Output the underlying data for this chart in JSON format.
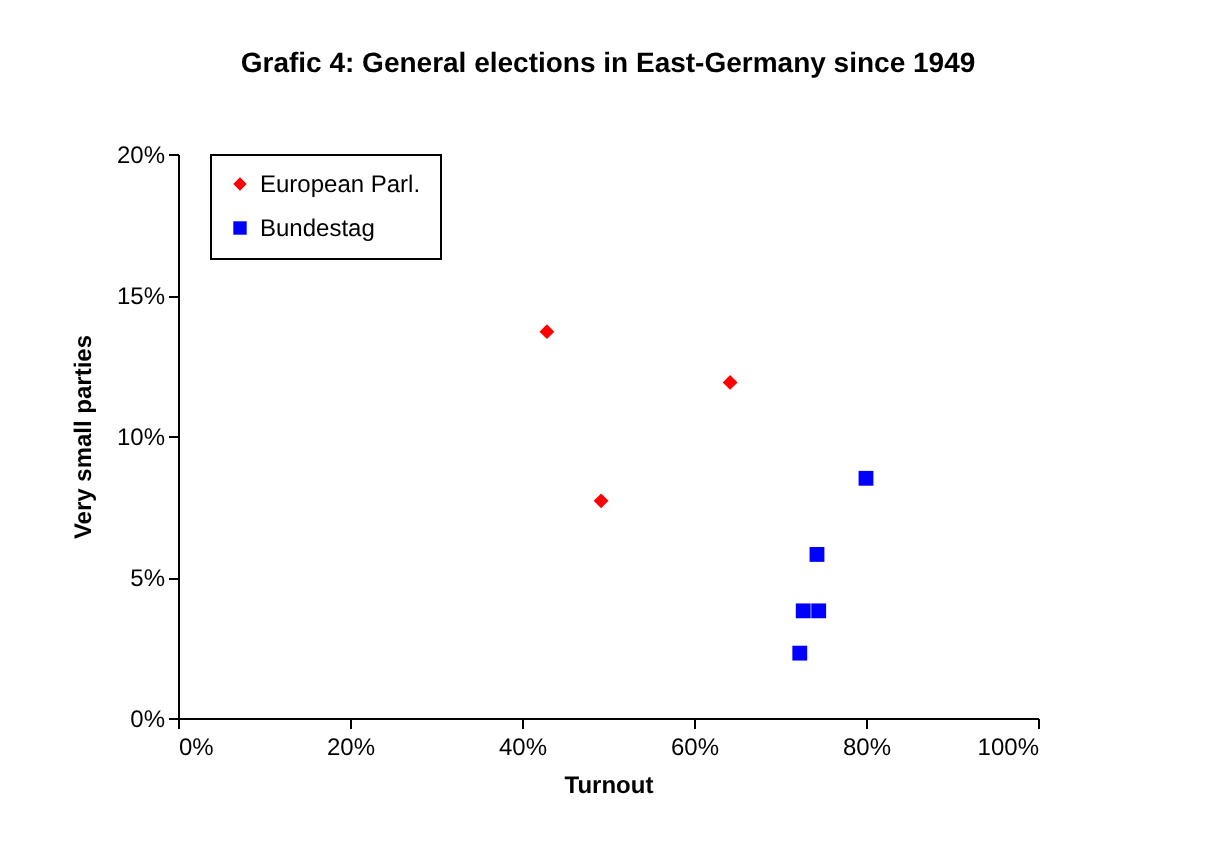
{
  "chart_data": {
    "type": "scatter",
    "title": "Grafic 4: General elections in East-Germany since 1949",
    "xlabel": "Turnout",
    "ylabel": "Very small parties",
    "xlim": [
      0,
      100
    ],
    "ylim": [
      0,
      20
    ],
    "xticks": [
      {
        "value": 0,
        "label": "0%"
      },
      {
        "value": 20,
        "label": "20%"
      },
      {
        "value": 40,
        "label": "40%"
      },
      {
        "value": 60,
        "label": "60%"
      },
      {
        "value": 80,
        "label": "80%"
      },
      {
        "value": 100,
        "label": "100%"
      }
    ],
    "yticks": [
      {
        "value": 0,
        "label": "0%"
      },
      {
        "value": 5,
        "label": "5%"
      },
      {
        "value": 10,
        "label": "10%"
      },
      {
        "value": 15,
        "label": "15%"
      },
      {
        "value": 20,
        "label": "20%"
      }
    ],
    "grid": false,
    "legend": "top left",
    "series": [
      {
        "name": "European Parl.",
        "color": "#ff0000",
        "marker": "diamond",
        "x": [
          42.9,
          49.2,
          64.2
        ],
        "values": [
          13.7,
          7.7,
          11.9
        ]
      },
      {
        "name": "Bundestag",
        "color": "#0000ff",
        "marker": "square",
        "x": [
          80,
          74.3,
          72.7,
          74.5,
          72.3
        ],
        "values": [
          8.5,
          5.8,
          3.8,
          3.8,
          2.3
        ]
      }
    ]
  }
}
